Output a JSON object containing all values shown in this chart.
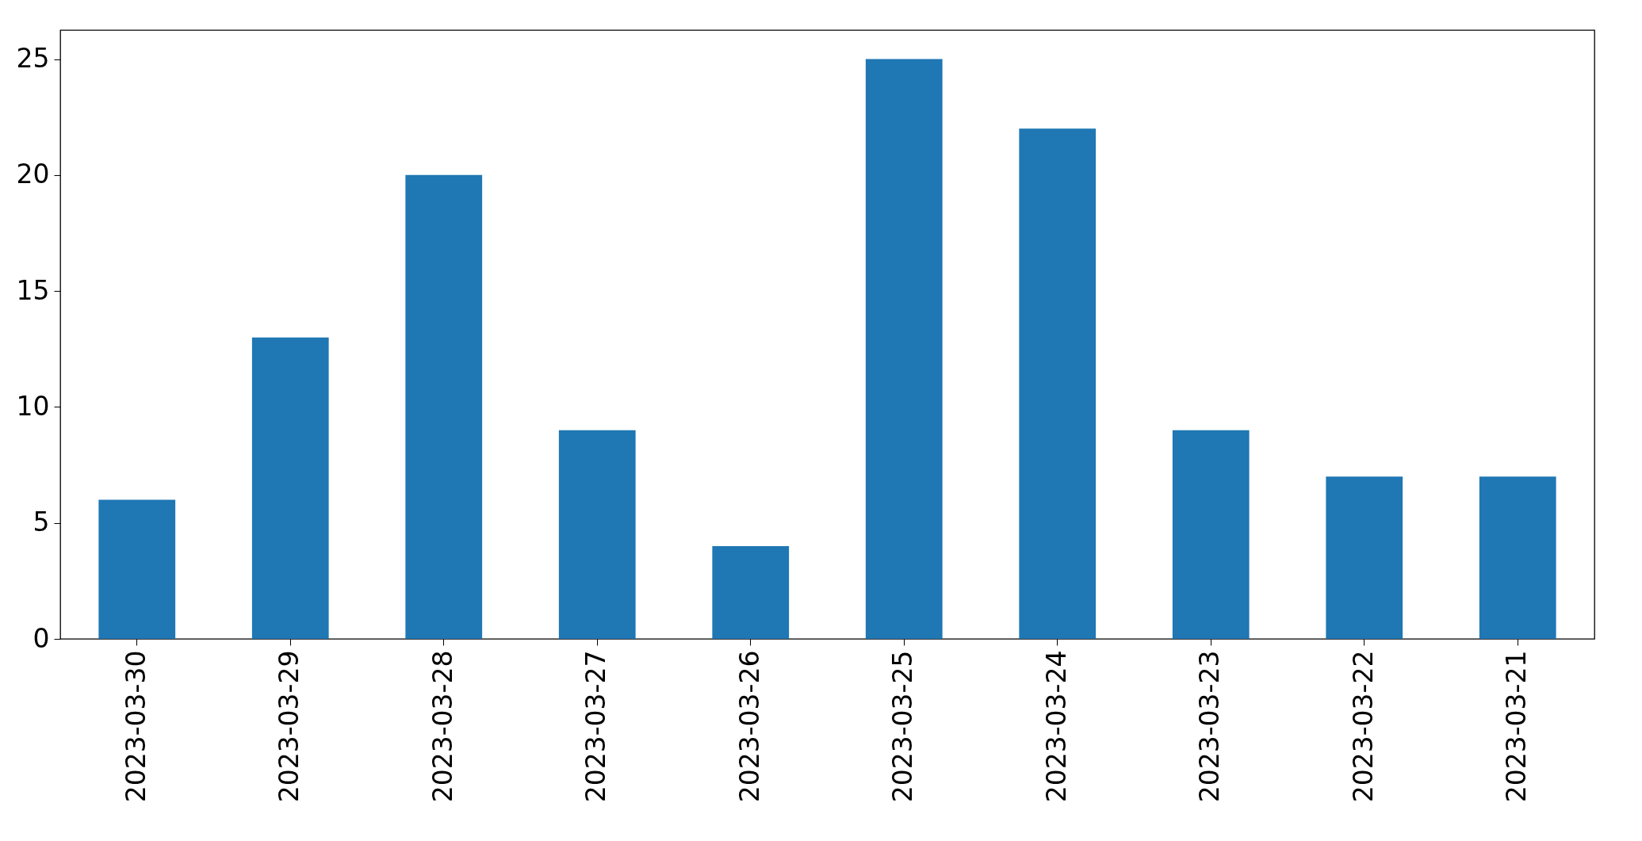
{
  "chart_data": {
    "type": "bar",
    "categories": [
      "2023-03-30",
      "2023-03-29",
      "2023-03-28",
      "2023-03-27",
      "2023-03-26",
      "2023-03-25",
      "2023-03-24",
      "2023-03-23",
      "2023-03-22",
      "2023-03-21"
    ],
    "values": [
      6,
      13,
      20,
      9,
      4,
      25,
      22,
      9,
      7,
      7
    ],
    "color": "#1f77b4",
    "ylim": [
      0,
      26.25
    ],
    "yticks": [
      0,
      5,
      10,
      15,
      20,
      25
    ],
    "grid": false
  }
}
